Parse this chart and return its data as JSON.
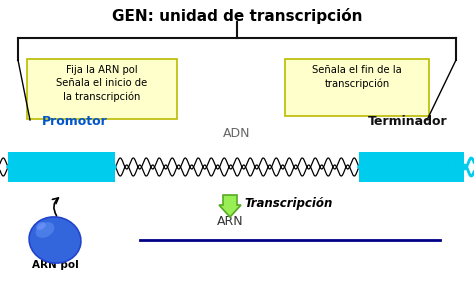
{
  "title": "GEN: unidad de transcripción",
  "title_fontsize": 11,
  "box1_text": "Fija la ARN pol\nSeñala el inicio de\nla transcripción",
  "box2_text": "Señala el fin de la\ntranscripción",
  "box_facecolor": "#ffffcc",
  "box_edgecolor": "#bbbb00",
  "label_promotor": "Promotor",
  "label_terminador": "Terminador",
  "label_adn": "ADN",
  "label_arn": "ARN",
  "label_transcripcion": "Transcripción",
  "label_arnpol": "ARN pol",
  "cyan_color": "#00ccee",
  "dna_black": "#000000",
  "arn_line_color": "#000088",
  "arrow_fill": "#99ee55",
  "arrow_edge": "#55aa22",
  "bracket_color": "#111111",
  "blob_dark": "#2244cc",
  "blob_mid": "#3366dd",
  "blob_light": "#5588ee",
  "background": "#ffffff",
  "promotor_color": "#0055cc",
  "terminador_color": "#111111",
  "adn_text_color": "#666666",
  "arn_text_color": "#333333"
}
